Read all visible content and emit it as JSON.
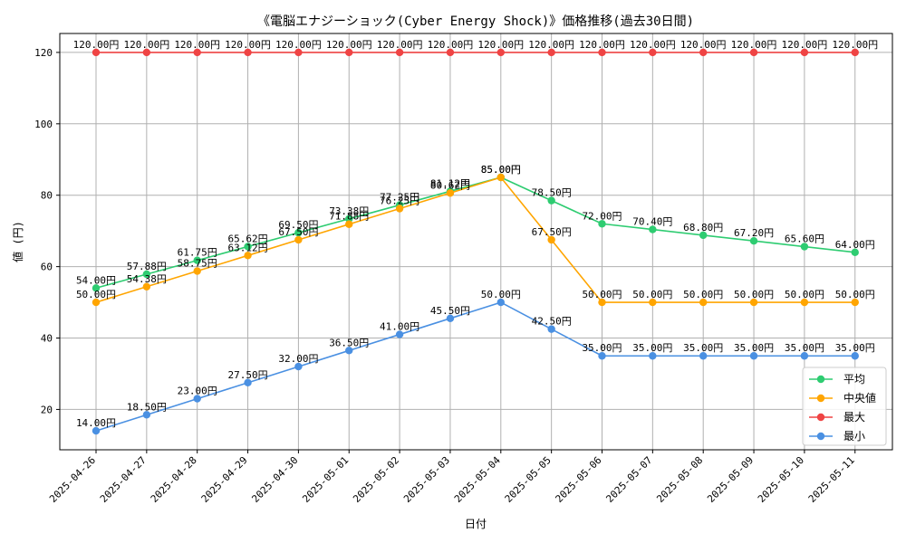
{
  "chart_data": {
    "type": "line",
    "title": "《電脳エナジーショック(Cyber Energy Shock)》価格推移(過去30日間)",
    "xlabel": "日付",
    "ylabel": "値 (円)",
    "ylim": [
      8.7,
      125.3
    ],
    "yticks": [
      20,
      40,
      60,
      80,
      100,
      120
    ],
    "grid": true,
    "legend_position": "lower-right",
    "categories": [
      "2025-04-26",
      "2025-04-27",
      "2025-04-28",
      "2025-04-29",
      "2025-04-30",
      "2025-05-01",
      "2025-05-02",
      "2025-05-03",
      "2025-05-04",
      "2025-05-05",
      "2025-05-06",
      "2025-05-07",
      "2025-05-08",
      "2025-05-09",
      "2025-05-10",
      "2025-05-11"
    ],
    "series": [
      {
        "name": "平均",
        "color": "#2ecc71",
        "values": [
          54.0,
          57.88,
          61.75,
          65.62,
          69.5,
          73.38,
          77.25,
          81.12,
          85.0,
          78.5,
          72.0,
          70.4,
          68.8,
          67.2,
          65.6,
          64.0
        ],
        "labels": [
          "54.00円",
          "57.88円",
          "61.75円",
          "65.62円",
          "69.50円",
          "73.38円",
          "77.25円",
          "81.12円",
          "85.00円",
          "78.50円",
          "72.00円",
          "70.40円",
          "68.80円",
          "67.20円",
          "65.60円",
          "64.00円"
        ]
      },
      {
        "name": "中央値",
        "color": "#ffa500",
        "values": [
          50.0,
          54.38,
          58.75,
          63.12,
          67.5,
          71.88,
          76.25,
          80.62,
          85.0,
          67.5,
          50.0,
          50.0,
          50.0,
          50.0,
          50.0,
          50.0
        ],
        "labels": [
          "50.00円",
          "54.38円",
          "58.75円",
          "63.12円",
          "67.50円",
          "71.88円",
          "76.25円",
          "80.62円",
          "85.00円",
          "67.50円",
          "50.00円",
          "50.00円",
          "50.00円",
          "50.00円",
          "50.00円",
          "50.00円"
        ]
      },
      {
        "name": "最大",
        "color": "#ef4444",
        "values": [
          120,
          120,
          120,
          120,
          120,
          120,
          120,
          120,
          120,
          120,
          120,
          120,
          120,
          120,
          120,
          120
        ],
        "labels": [
          "120.00円",
          "120.00円",
          "120.00円",
          "120.00円",
          "120.00円",
          "120.00円",
          "120.00円",
          "120.00円",
          "120.00円",
          "120.00円",
          "120.00円",
          "120.00円",
          "120.00円",
          "120.00円",
          "120.00円",
          "120.00円"
        ]
      },
      {
        "name": "最小",
        "color": "#4a90e2",
        "values": [
          14.0,
          18.5,
          23.0,
          27.5,
          32.0,
          36.5,
          41.0,
          45.5,
          50.0,
          42.5,
          35.0,
          35.0,
          35.0,
          35.0,
          35.0,
          35.0
        ],
        "labels": [
          "14.00円",
          "18.50円",
          "23.00円",
          "27.50円",
          "32.00円",
          "36.50円",
          "41.00円",
          "45.50円",
          "50.00円",
          "42.50円",
          "35.00円",
          "35.00円",
          "35.00円",
          "35.00円",
          "35.00円",
          "35.00円"
        ]
      }
    ]
  }
}
